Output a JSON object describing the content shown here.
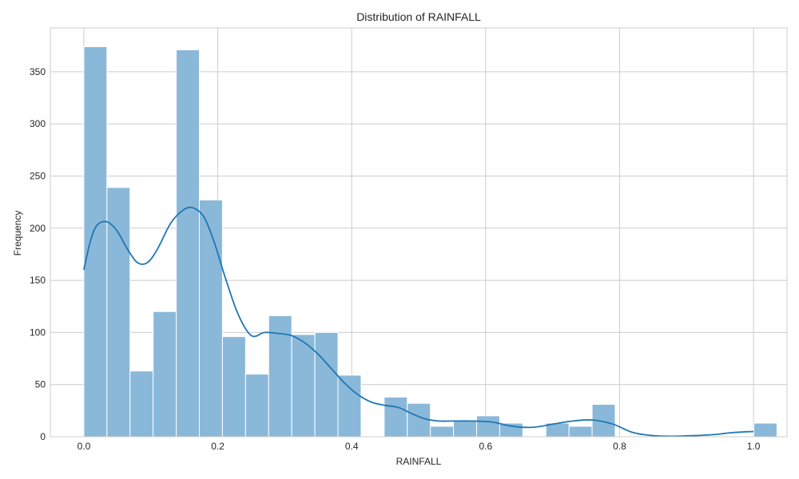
{
  "chart_data": {
    "type": "bar",
    "title": "Distribution of RAINFALL",
    "xlabel": "RAINFALL",
    "ylabel": "Frequency",
    "xlim": [
      -0.05,
      1.05
    ],
    "ylim": [
      0,
      392
    ],
    "xticks": [
      0.0,
      0.2,
      0.4,
      0.6,
      0.8,
      1.0
    ],
    "xtick_labels": [
      "0.0",
      "0.2",
      "0.4",
      "0.6",
      "0.8",
      "1.0"
    ],
    "yticks": [
      0,
      50,
      100,
      150,
      200,
      250,
      300,
      350
    ],
    "ytick_labels": [
      "0",
      "50",
      "100",
      "150",
      "200",
      "250",
      "300",
      "350"
    ],
    "grid": true,
    "colors": {
      "bar": "#8ab8d9",
      "kde": "#1f77b4",
      "grid": "#cccccc"
    },
    "bin_start": 0.0,
    "bin_width": 0.0345,
    "values": [
      374,
      239,
      63,
      120,
      371,
      227,
      96,
      60,
      116,
      98,
      100,
      59,
      0,
      38,
      32,
      10,
      16,
      20,
      13,
      0,
      13,
      10,
      31,
      0,
      0,
      0,
      0,
      0,
      0,
      13
    ],
    "kde": {
      "x": [
        0.0,
        0.01,
        0.02,
        0.035,
        0.05,
        0.065,
        0.08,
        0.095,
        0.11,
        0.13,
        0.15,
        0.165,
        0.18,
        0.195,
        0.21,
        0.23,
        0.25,
        0.27,
        0.29,
        0.31,
        0.33,
        0.35,
        0.37,
        0.39,
        0.41,
        0.43,
        0.45,
        0.47,
        0.49,
        0.51,
        0.53,
        0.55,
        0.58,
        0.61,
        0.64,
        0.67,
        0.7,
        0.73,
        0.76,
        0.79,
        0.82,
        0.85,
        0.88,
        0.91,
        0.94,
        0.97,
        1.0
      ],
      "y": [
        160,
        188,
        203,
        206,
        197,
        180,
        167,
        167,
        180,
        205,
        218,
        219,
        210,
        186,
        155,
        118,
        97,
        100,
        99,
        97,
        90,
        79,
        65,
        51,
        40,
        33,
        30,
        28,
        22,
        17,
        15,
        15,
        15,
        14,
        10,
        9,
        12,
        15,
        16,
        12,
        4,
        1,
        0.5,
        1,
        2,
        4,
        5
      ]
    }
  }
}
